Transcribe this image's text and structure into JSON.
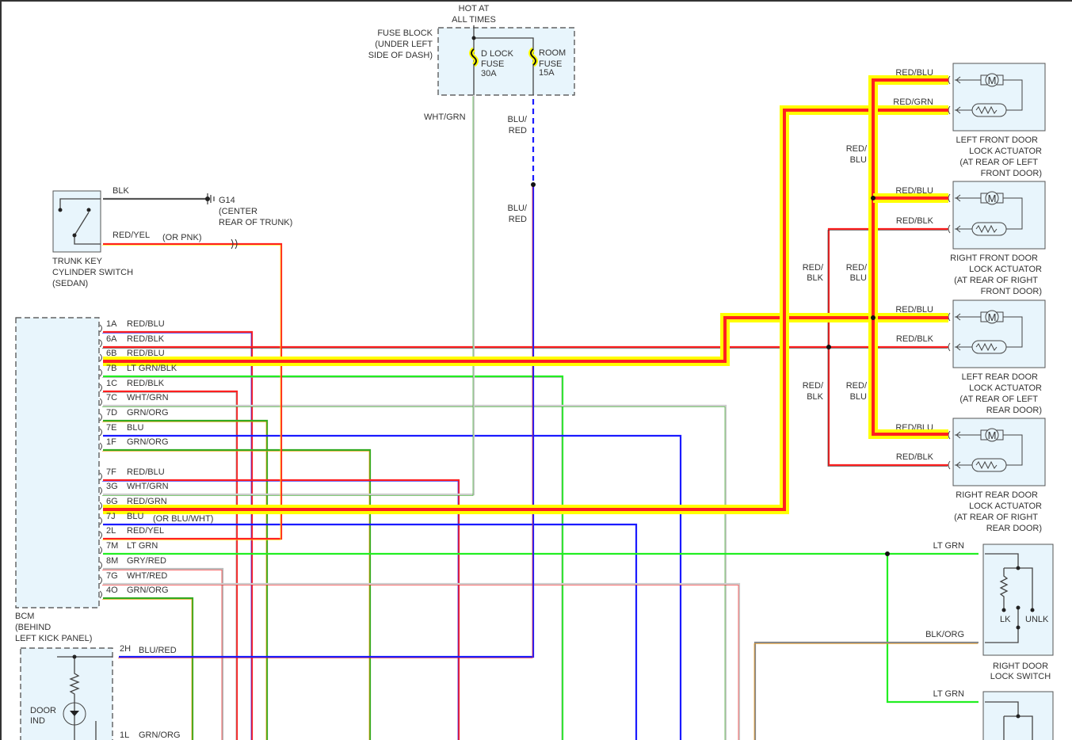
{
  "fuse_block": {
    "hot": [
      "HOT AT",
      "ALL TIMES"
    ],
    "label": [
      "FUSE BLOCK",
      "(UNDER LEFT",
      "SIDE OF DASH)"
    ],
    "fuse1": [
      "D LOCK",
      "FUSE",
      "30A"
    ],
    "fuse2": [
      "ROOM",
      "FUSE",
      "15A"
    ],
    "wire_left": "WHT/GRN",
    "wire_right": [
      "BLU/",
      "RED"
    ],
    "wire_right2": [
      "BLU/",
      "RED"
    ]
  },
  "trunk_switch": {
    "label": [
      "TRUNK KEY",
      "CYLINDER SWITCH",
      "(SEDAN)"
    ],
    "blk": "BLK",
    "ground": [
      "G14",
      "(CENTER",
      "REAR OF TRUNK)"
    ],
    "wire": "RED/YEL",
    "wire_note": "(OR PNK)"
  },
  "bcm": {
    "label": [
      "BCM",
      "(BEHIND",
      "LEFT KICK PANEL)"
    ],
    "pins": [
      {
        "pin": "1A",
        "color": "RED/BLU"
      },
      {
        "pin": "6A",
        "color": "RED/BLK"
      },
      {
        "pin": "6B",
        "color": "RED/BLU"
      },
      {
        "pin": "7B",
        "color": "LT GRN/BLK"
      },
      {
        "pin": "1C",
        "color": "RED/BLK"
      },
      {
        "pin": "7C",
        "color": "WHT/GRN"
      },
      {
        "pin": "7D",
        "color": "GRN/ORG"
      },
      {
        "pin": "7E",
        "color": "BLU"
      },
      {
        "pin": "1F",
        "color": "GRN/ORG"
      },
      {
        "pin": "7F",
        "color": "RED/BLU"
      },
      {
        "pin": "3G",
        "color": "WHT/GRN"
      },
      {
        "pin": "6G",
        "color": "RED/GRN"
      },
      {
        "pin": "7J",
        "color": "BLU",
        "note": "(OR BLU/WHT)"
      },
      {
        "pin": "2L",
        "color": "RED/YEL"
      },
      {
        "pin": "7M",
        "color": "LT GRN"
      },
      {
        "pin": "8M",
        "color": "GRY/RED"
      },
      {
        "pin": "7G",
        "color": "WHT/RED"
      },
      {
        "pin": "4O",
        "color": "GRN/ORG"
      }
    ]
  },
  "door_ind": {
    "label": [
      "DOOR",
      "IND"
    ],
    "pin1": "2H",
    "wire1": "BLU/RED",
    "pin2": "1L",
    "wire2": "GRN/ORG"
  },
  "actuators": [
    {
      "wire1": "RED/BLU",
      "wire2": "RED/GRN",
      "label": [
        "LEFT FRONT DOOR",
        "LOCK ACTUATOR",
        "(AT REAR OF LEFT",
        "FRONT DOOR)"
      ]
    },
    {
      "wire1": "RED/BLU",
      "wire2": "RED/BLK",
      "label": [
        "RIGHT FRONT DOOR",
        "LOCK ACTUATOR",
        "(AT REAR OF RIGHT",
        "FRONT DOOR)"
      ]
    },
    {
      "wire1": "RED/BLU",
      "wire2": "RED/BLK",
      "label": [
        "LEFT REAR DOOR",
        "LOCK ACTUATOR",
        "(AT REAR OF LEFT",
        "REAR DOOR)"
      ]
    },
    {
      "wire1": "RED/BLU",
      "wire2": "RED/BLK",
      "label": [
        "RIGHT REAR DOOR",
        "LOCK ACTUATOR",
        "(AT REAR OF RIGHT",
        "REAR DOOR)"
      ]
    }
  ],
  "vertical_labels": {
    "red_blu": [
      "RED/",
      "BLU"
    ],
    "red_blk": [
      "RED/",
      "BLK"
    ]
  },
  "door_switch": {
    "wire1": "LT GRN",
    "wire2": "BLK/ORG",
    "lk": "LK",
    "unlk": "UNLK",
    "label": [
      "RIGHT DOOR",
      "LOCK SWITCH"
    ],
    "wire3": "LT GRN"
  },
  "colors": {
    "highlight": "#ffff00",
    "red": "#ff2020",
    "blue": "#1a1aff",
    "lt_green": "#22ee22",
    "green": "#33aa22",
    "orange": "#ff9900",
    "white": "#cccccc",
    "gray": "#999999",
    "box_fill": "#e8f5fc"
  }
}
